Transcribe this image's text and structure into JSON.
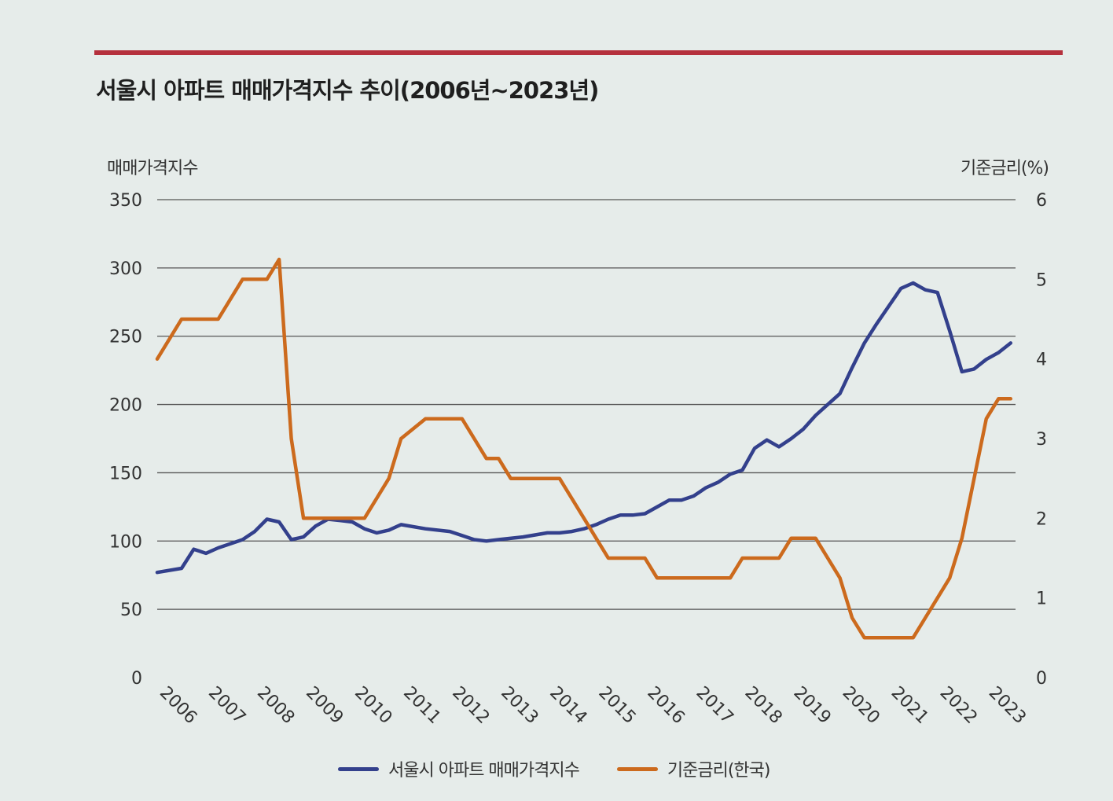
{
  "title": "서울시 아파트 매매가격지수 추이(2006년~2023년)",
  "chart_data": {
    "type": "line",
    "title": "서울시 아파트 매매가격지수 추이(2006년~2023년)",
    "ylabel_left": "매매가격지수",
    "ylabel_right": "기준금리(%)",
    "ylim_left": [
      0,
      350
    ],
    "ylim_right": [
      0,
      6
    ],
    "yticks_left": [
      "0",
      "50",
      "100",
      "150",
      "200",
      "250",
      "300",
      "350"
    ],
    "yticks_right": [
      "0",
      "1",
      "2",
      "3",
      "4",
      "5",
      "6"
    ],
    "xlim": [
      2006,
      2023.6
    ],
    "xticks": [
      "2006",
      "2007",
      "2008",
      "2009",
      "2010",
      "2011",
      "2012",
      "2013",
      "2014",
      "2015",
      "2016",
      "2017",
      "2018",
      "2019",
      "2020",
      "2021",
      "2022",
      "2023"
    ],
    "grid": "horizontal",
    "legend_position": "bottom",
    "series": [
      {
        "name": "서울시 아파트 매매가격지수",
        "axis": "left",
        "color": "#33408c",
        "x": [
          2006.0,
          2006.5,
          2006.75,
          2007.0,
          2007.25,
          2007.75,
          2008.0,
          2008.25,
          2008.5,
          2008.75,
          2009.0,
          2009.25,
          2009.5,
          2009.75,
          2010.0,
          2010.25,
          2010.5,
          2010.75,
          2011.0,
          2011.5,
          2012.0,
          2012.25,
          2012.5,
          2012.75,
          2013.0,
          2013.5,
          2014.0,
          2014.25,
          2014.5,
          2014.75,
          2015.0,
          2015.25,
          2015.5,
          2015.75,
          2016.0,
          2016.25,
          2016.5,
          2016.75,
          2017.0,
          2017.25,
          2017.5,
          2017.75,
          2018.0,
          2018.25,
          2018.5,
          2018.75,
          2019.0,
          2019.25,
          2019.5,
          2019.75,
          2020.0,
          2020.25,
          2020.5,
          2020.75,
          2021.0,
          2021.25,
          2021.5,
          2021.75,
          2022.0,
          2022.25,
          2022.5,
          2022.75,
          2023.0,
          2023.25,
          2023.5
        ],
        "values": [
          77,
          80,
          94,
          91,
          95,
          101,
          107,
          116,
          114,
          101,
          103,
          111,
          116,
          115,
          114,
          109,
          106,
          108,
          112,
          109,
          107,
          104,
          101,
          100,
          101,
          103,
          106,
          106,
          107,
          109,
          112,
          116,
          119,
          119,
          120,
          125,
          130,
          130,
          133,
          139,
          143,
          149,
          152,
          168,
          174,
          169,
          175,
          182,
          192,
          200,
          208,
          227,
          245,
          259,
          272,
          285,
          289,
          284,
          282,
          254,
          224,
          226,
          233,
          238,
          245
        ]
      },
      {
        "name": "기준금리(한국)",
        "axis": "right",
        "color": "#cc6a1d",
        "x": [
          2006.0,
          2006.5,
          2007.0,
          2007.25,
          2007.75,
          2008.0,
          2008.25,
          2008.5,
          2008.75,
          2009.0,
          2009.25,
          2010.0,
          2010.25,
          2010.5,
          2010.75,
          2011.0,
          2011.5,
          2012.0,
          2012.25,
          2012.5,
          2012.75,
          2013.0,
          2013.25,
          2013.5,
          2014.0,
          2014.25,
          2014.5,
          2014.75,
          2015.0,
          2015.25,
          2015.75,
          2016.0,
          2016.25,
          2016.75,
          2017.0,
          2017.25,
          2017.75,
          2018.0,
          2018.25,
          2018.5,
          2018.75,
          2019.0,
          2019.25,
          2019.5,
          2019.75,
          2020.0,
          2020.25,
          2020.5,
          2021.0,
          2021.25,
          2021.5,
          2021.75,
          2022.0,
          2022.25,
          2022.5,
          2022.75,
          2023.0,
          2023.25,
          2023.5
        ],
        "values": [
          4.0,
          4.5,
          4.5,
          4.5,
          5.0,
          5.0,
          5.0,
          5.25,
          3.0,
          2.0,
          2.0,
          2.0,
          2.0,
          2.25,
          2.5,
          3.0,
          3.25,
          3.25,
          3.25,
          3.0,
          2.75,
          2.75,
          2.5,
          2.5,
          2.5,
          2.5,
          2.25,
          2.0,
          1.75,
          1.5,
          1.5,
          1.5,
          1.25,
          1.25,
          1.25,
          1.25,
          1.25,
          1.5,
          1.5,
          1.5,
          1.5,
          1.75,
          1.75,
          1.75,
          1.5,
          1.25,
          0.75,
          0.5,
          0.5,
          0.5,
          0.5,
          0.75,
          1.0,
          1.25,
          1.75,
          2.5,
          3.25,
          3.5,
          3.5
        ]
      }
    ]
  }
}
